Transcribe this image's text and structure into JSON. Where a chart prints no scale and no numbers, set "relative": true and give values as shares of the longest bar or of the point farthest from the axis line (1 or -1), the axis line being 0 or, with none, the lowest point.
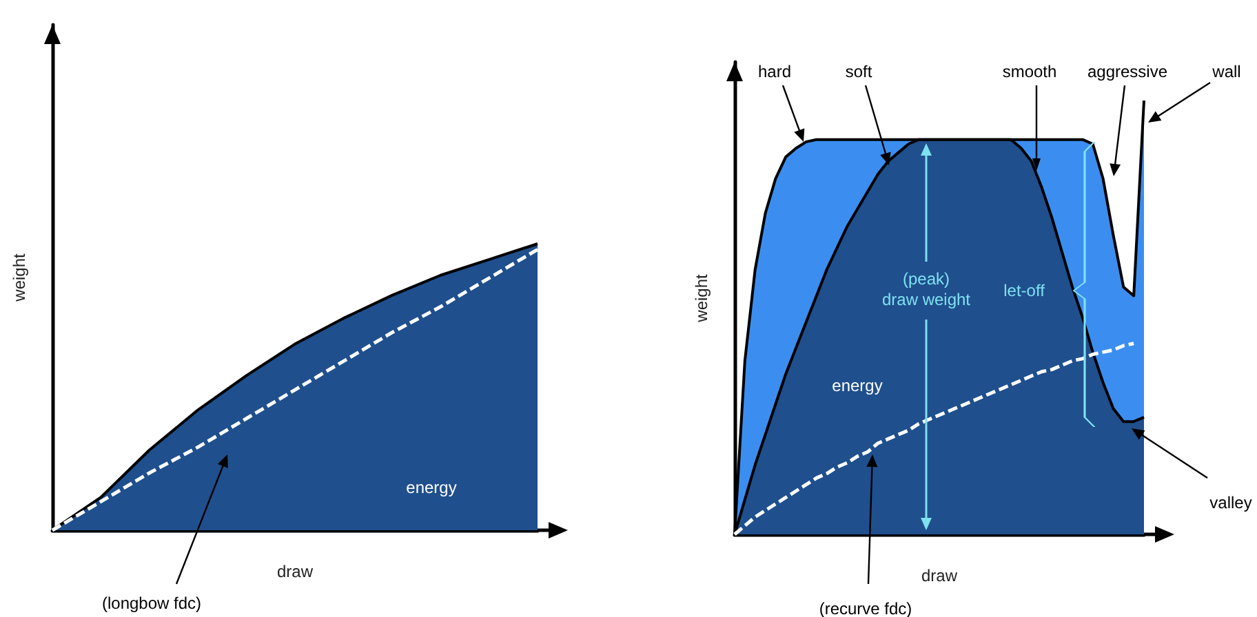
{
  "chart_data": [
    {
      "type": "area",
      "relative": true,
      "marker": "none",
      "xlabel": "draw",
      "ylabel": "weight",
      "categories": [
        null,
        null,
        null,
        null,
        null,
        null,
        null,
        null,
        null,
        null,
        null
      ],
      "series": [
        {
          "color": "#1f4f8d",
          "values": [
            0,
            0.115,
            0.28,
            0.42,
            0.54,
            0.65,
            0.74,
            0.82,
            0.89,
            0.945,
            1
          ]
        },
        {
          "type": "line",
          "line_style": "dashed",
          "color": "#ffffff",
          "values": [
            0,
            0.1,
            0.2,
            0.29,
            0.39,
            0.49,
            0.59,
            0.69,
            0.78,
            0.88,
            0.98
          ]
        }
      ],
      "annotations": [
        "energy",
        "(longbow fdc)"
      ]
    },
    {
      "type": "area",
      "relative": true,
      "marker": "none",
      "xlabel": "draw",
      "ylabel": "weight",
      "categories": [
        null,
        null,
        null,
        null,
        null,
        null,
        null,
        null,
        null,
        null,
        null,
        null,
        null,
        null,
        null,
        null,
        null,
        null,
        null,
        null,
        null,
        null,
        null,
        null,
        null,
        null,
        null,
        null,
        null,
        null,
        null,
        null,
        null,
        null,
        null,
        null,
        null,
        null,
        null,
        null,
        null
      ],
      "series": [
        {
          "color": "#3b8ef0",
          "values": [
            0,
            0.4,
            0.61,
            0.74,
            0.82,
            0.87,
            0.89,
            0.905,
            0.91,
            0.91,
            0.91,
            0.91,
            0.91,
            0.91,
            0.91,
            0.91,
            0.91,
            0.91,
            0.91,
            0.91,
            0.91,
            0.91,
            0.91,
            0.91,
            0.91,
            0.91,
            0.91,
            0.91,
            0.91,
            0.91,
            0.91,
            0.91,
            0.91,
            0.91,
            0.91,
            0.9,
            0.82,
            0.69,
            0.57,
            0.55,
            1
          ]
        },
        {
          "color": "#1f4f8d",
          "values": [
            0,
            0.08,
            0.16,
            0.23,
            0.3,
            0.37,
            0.43,
            0.49,
            0.55,
            0.61,
            0.66,
            0.71,
            0.75,
            0.79,
            0.83,
            0.86,
            0.88,
            0.9,
            0.91,
            0.91,
            0.91,
            0.91,
            0.91,
            0.91,
            0.91,
            0.91,
            0.91,
            0.91,
            0.89,
            0.86,
            0.8,
            0.73,
            0.65,
            0.57,
            0.5,
            0.42,
            0.35,
            0.29,
            0.26,
            0.26,
            0.27
          ]
        },
        {
          "type": "line",
          "line_style": "dashed",
          "color": "#ffffff",
          "values": [
            0,
            0.02,
            0.04,
            0.055,
            0.07,
            0.085,
            0.1,
            0.115,
            0.13,
            0.14,
            0.155,
            0.165,
            0.18,
            0.19,
            0.21,
            0.22,
            0.23,
            0.24,
            0.255,
            0.265,
            0.275,
            0.285,
            0.295,
            0.305,
            0.315,
            0.325,
            0.335,
            0.345,
            0.355,
            0.365,
            0.375,
            0.38,
            0.39,
            0.4,
            0.405,
            0.415,
            0.42,
            0.425,
            0.435,
            0.44,
            null
          ]
        }
      ],
      "annotations": [
        "hard",
        "soft",
        "smooth",
        "aggressive",
        "wall",
        "(peak)\ndraw weight",
        "let-off",
        "energy",
        "valley",
        "(recurve fdc)"
      ]
    }
  ]
}
